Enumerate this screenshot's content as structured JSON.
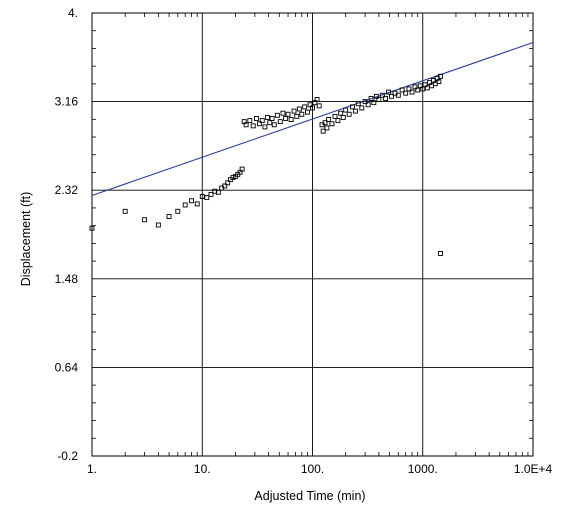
{
  "chart_data": {
    "type": "scatter",
    "title": "",
    "xlabel": "Adjusted Time (min)",
    "ylabel": "Displacement (ft)",
    "x_scale": "log",
    "xlim": [
      1,
      10000
    ],
    "ylim": [
      -0.2,
      4.0
    ],
    "x_ticks": [
      {
        "value": 1,
        "label": "1."
      },
      {
        "value": 10,
        "label": "10."
      },
      {
        "value": 100,
        "label": "100."
      },
      {
        "value": 1000,
        "label": "1000."
      },
      {
        "value": 10000,
        "label": "1.0E+4"
      }
    ],
    "y_ticks": [
      {
        "value": -0.2,
        "label": "-0.2"
      },
      {
        "value": 0.64,
        "label": "0.64"
      },
      {
        "value": 1.48,
        "label": "1.48"
      },
      {
        "value": 2.32,
        "label": "2.32"
      },
      {
        "value": 3.16,
        "label": "3.16"
      },
      {
        "value": 4.0,
        "label": "4."
      }
    ],
    "grid": true,
    "marker": "open-square",
    "line_color": "#2b3f9e",
    "series": [
      {
        "type": "scatter",
        "points": [
          [
            1,
            1.96
          ],
          [
            2,
            2.12
          ],
          [
            3,
            2.04
          ],
          [
            4,
            1.99
          ],
          [
            5,
            2.07
          ],
          [
            6,
            2.12
          ],
          [
            7,
            2.18
          ],
          [
            8,
            2.22
          ],
          [
            9,
            2.19
          ],
          [
            10,
            2.26
          ],
          [
            11,
            2.25
          ],
          [
            12,
            2.28
          ],
          [
            13,
            2.31
          ],
          [
            14,
            2.3
          ],
          [
            15,
            2.34
          ],
          [
            16,
            2.36
          ],
          [
            17,
            2.39
          ],
          [
            18,
            2.42
          ],
          [
            19,
            2.44
          ],
          [
            20,
            2.45
          ],
          [
            21,
            2.47
          ],
          [
            22,
            2.49
          ],
          [
            23,
            2.52
          ],
          [
            24,
            2.97
          ],
          [
            25,
            2.94
          ],
          [
            27,
            2.98
          ],
          [
            29,
            2.93
          ],
          [
            31,
            3.0
          ],
          [
            33,
            2.95
          ],
          [
            35,
            2.98
          ],
          [
            37,
            2.92
          ],
          [
            39,
            3.01
          ],
          [
            41,
            2.96
          ],
          [
            43,
            3.0
          ],
          [
            45,
            2.94
          ],
          [
            48,
            3.03
          ],
          [
            51,
            2.97
          ],
          [
            54,
            3.05
          ],
          [
            57,
            3.0
          ],
          [
            60,
            3.04
          ],
          [
            64,
            2.99
          ],
          [
            68,
            3.07
          ],
          [
            72,
            3.02
          ],
          [
            76,
            3.09
          ],
          [
            80,
            3.04
          ],
          [
            85,
            3.11
          ],
          [
            90,
            3.06
          ],
          [
            95,
            3.13
          ],
          [
            100,
            3.1
          ],
          [
            105,
            3.15
          ],
          [
            110,
            3.18
          ],
          [
            115,
            3.12
          ],
          [
            122,
            2.94
          ],
          [
            125,
            2.88
          ],
          [
            130,
            2.96
          ],
          [
            135,
            2.91
          ],
          [
            140,
            2.99
          ],
          [
            150,
            2.95
          ],
          [
            160,
            3.02
          ],
          [
            170,
            2.98
          ],
          [
            180,
            3.05
          ],
          [
            190,
            3.01
          ],
          [
            200,
            3.08
          ],
          [
            215,
            3.04
          ],
          [
            230,
            3.11
          ],
          [
            245,
            3.07
          ],
          [
            260,
            3.14
          ],
          [
            280,
            3.1
          ],
          [
            300,
            3.16
          ],
          [
            320,
            3.13
          ],
          [
            340,
            3.19
          ],
          [
            360,
            3.15
          ],
          [
            380,
            3.21
          ],
          [
            400,
            3.18
          ],
          [
            430,
            3.22
          ],
          [
            460,
            3.19
          ],
          [
            490,
            3.25
          ],
          [
            520,
            3.21
          ],
          [
            560,
            3.24
          ],
          [
            600,
            3.22
          ],
          [
            650,
            3.27
          ],
          [
            700,
            3.24
          ],
          [
            750,
            3.28
          ],
          [
            800,
            3.25
          ],
          [
            850,
            3.3
          ],
          [
            900,
            3.27
          ],
          [
            950,
            3.31
          ],
          [
            1000,
            3.28
          ],
          [
            1050,
            3.32
          ],
          [
            1100,
            3.29
          ],
          [
            1150,
            3.34
          ],
          [
            1200,
            3.31
          ],
          [
            1250,
            3.36
          ],
          [
            1300,
            3.33
          ],
          [
            1350,
            3.38
          ],
          [
            1400,
            3.35
          ],
          [
            1450,
            3.4
          ],
          [
            1450,
            1.72
          ]
        ]
      },
      {
        "type": "line",
        "points": [
          [
            1,
            2.27
          ],
          [
            10000,
            3.72
          ]
        ]
      }
    ]
  }
}
